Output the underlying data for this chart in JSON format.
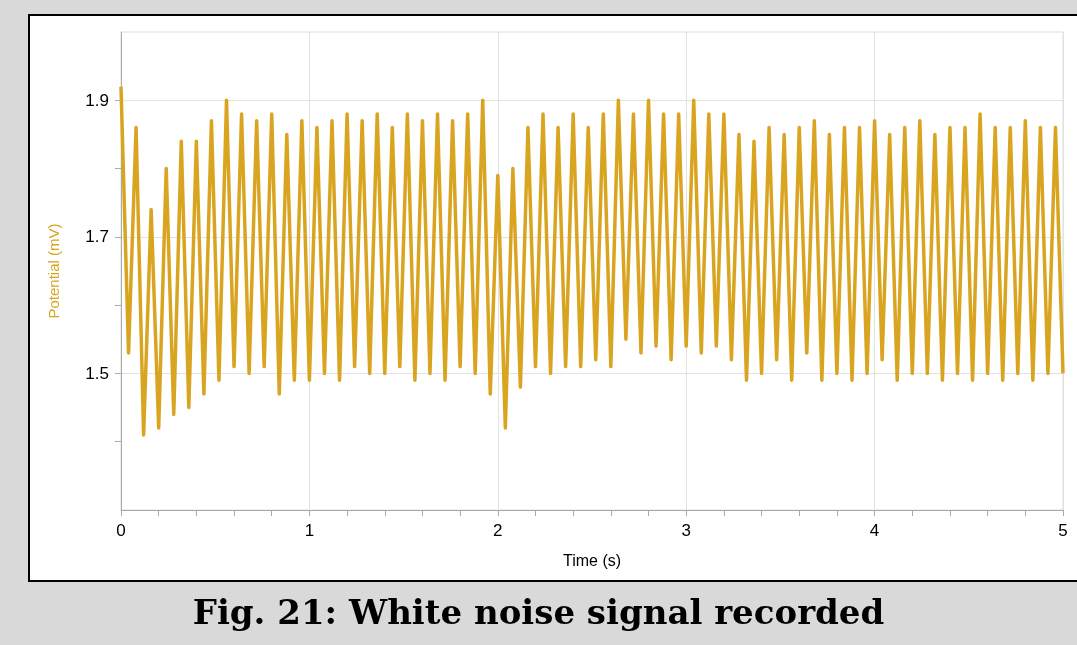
{
  "chart_data": {
    "type": "line",
    "xlabel": "Time (s)",
    "ylabel": "Potential (mV)",
    "annotations": [
      "Fig. 21: White noise signal recorded"
    ],
    "xlim": [
      0,
      5
    ],
    "ylim": [
      1.3,
      2.0
    ],
    "xticks": [
      0,
      {
        "value": 0.2,
        "label": null
      },
      {
        "value": 0.4,
        "label": null
      },
      {
        "value": 0.6,
        "label": null
      },
      {
        "value": 0.8,
        "label": null
      },
      1,
      {
        "value": 1.2,
        "label": null
      },
      {
        "value": 1.4,
        "label": null
      },
      {
        "value": 1.6,
        "label": null
      },
      {
        "value": 1.8,
        "label": null
      },
      2,
      {
        "value": 2.2,
        "label": null
      },
      {
        "value": 2.4,
        "label": null
      },
      {
        "value": 2.6,
        "label": null
      },
      {
        "value": 2.8,
        "label": null
      },
      3,
      {
        "value": 3.2,
        "label": null
      },
      {
        "value": 3.4,
        "label": null
      },
      {
        "value": 3.6,
        "label": null
      },
      {
        "value": 3.8,
        "label": null
      },
      4,
      {
        "value": 4.2,
        "label": null
      },
      {
        "value": 4.4,
        "label": null
      },
      {
        "value": 4.6,
        "label": null
      },
      {
        "value": 4.8,
        "label": null
      },
      5
    ],
    "yticks": [
      {
        "value": 1.4,
        "label": null
      },
      1.5,
      {
        "value": 1.6,
        "label": null
      },
      1.7,
      {
        "value": 1.8,
        "label": null
      },
      1.9
    ],
    "grid": true,
    "marker": "none",
    "line_style": "solid",
    "series": [
      {
        "color": "#d9a521",
        "x": [
          0.0,
          0.04,
          0.08,
          0.12,
          0.16,
          0.2,
          0.24,
          0.28,
          0.32,
          0.36,
          0.4,
          0.44,
          0.48,
          0.52,
          0.56,
          0.6,
          0.64,
          0.68,
          0.72,
          0.76,
          0.8,
          0.84,
          0.88,
          0.92,
          0.96,
          1.0,
          1.04,
          1.08,
          1.12,
          1.16,
          1.2,
          1.24,
          1.28,
          1.32,
          1.36,
          1.4,
          1.44,
          1.48,
          1.52,
          1.56,
          1.6,
          1.64,
          1.68,
          1.72,
          1.76,
          1.8,
          1.84,
          1.88,
          1.92,
          1.96,
          2.0,
          2.04,
          2.08,
          2.12,
          2.16,
          2.2,
          2.24,
          2.28,
          2.32,
          2.36,
          2.4,
          2.44,
          2.48,
          2.52,
          2.56,
          2.6,
          2.64,
          2.68,
          2.72,
          2.76,
          2.8,
          2.84,
          2.88,
          2.92,
          2.96,
          3.0,
          3.04,
          3.08,
          3.12,
          3.16,
          3.2,
          3.24,
          3.28,
          3.32,
          3.36,
          3.4,
          3.44,
          3.48,
          3.52,
          3.56,
          3.6,
          3.64,
          3.68,
          3.72,
          3.76,
          3.8,
          3.84,
          3.88,
          3.92,
          3.96,
          4.0,
          4.04,
          4.08,
          4.12,
          4.16,
          4.2,
          4.24,
          4.28,
          4.32,
          4.36,
          4.4,
          4.44,
          4.48,
          4.52,
          4.56,
          4.6,
          4.64,
          4.68,
          4.72,
          4.76,
          4.8,
          4.84,
          4.88,
          4.92,
          4.96,
          5.0
        ],
        "values": [
          1.92,
          1.53,
          1.86,
          1.41,
          1.74,
          1.42,
          1.8,
          1.44,
          1.84,
          1.45,
          1.84,
          1.47,
          1.87,
          1.49,
          1.9,
          1.51,
          1.88,
          1.5,
          1.87,
          1.51,
          1.88,
          1.47,
          1.85,
          1.49,
          1.87,
          1.49,
          1.86,
          1.5,
          1.87,
          1.49,
          1.88,
          1.51,
          1.87,
          1.5,
          1.88,
          1.5,
          1.86,
          1.51,
          1.88,
          1.49,
          1.87,
          1.5,
          1.88,
          1.49,
          1.87,
          1.51,
          1.88,
          1.5,
          1.9,
          1.47,
          1.79,
          1.42,
          1.8,
          1.48,
          1.86,
          1.51,
          1.88,
          1.5,
          1.86,
          1.51,
          1.88,
          1.51,
          1.86,
          1.52,
          1.88,
          1.51,
          1.9,
          1.55,
          1.88,
          1.53,
          1.9,
          1.54,
          1.88,
          1.52,
          1.88,
          1.54,
          1.9,
          1.53,
          1.88,
          1.54,
          1.88,
          1.52,
          1.85,
          1.49,
          1.84,
          1.5,
          1.86,
          1.52,
          1.85,
          1.49,
          1.86,
          1.53,
          1.87,
          1.49,
          1.85,
          1.5,
          1.86,
          1.49,
          1.86,
          1.5,
          1.87,
          1.52,
          1.85,
          1.49,
          1.86,
          1.5,
          1.87,
          1.5,
          1.85,
          1.49,
          1.86,
          1.5,
          1.86,
          1.49,
          1.88,
          1.5,
          1.86,
          1.49,
          1.86,
          1.5,
          1.87,
          1.49,
          1.86,
          1.5,
          1.86,
          1.5
        ]
      }
    ]
  }
}
